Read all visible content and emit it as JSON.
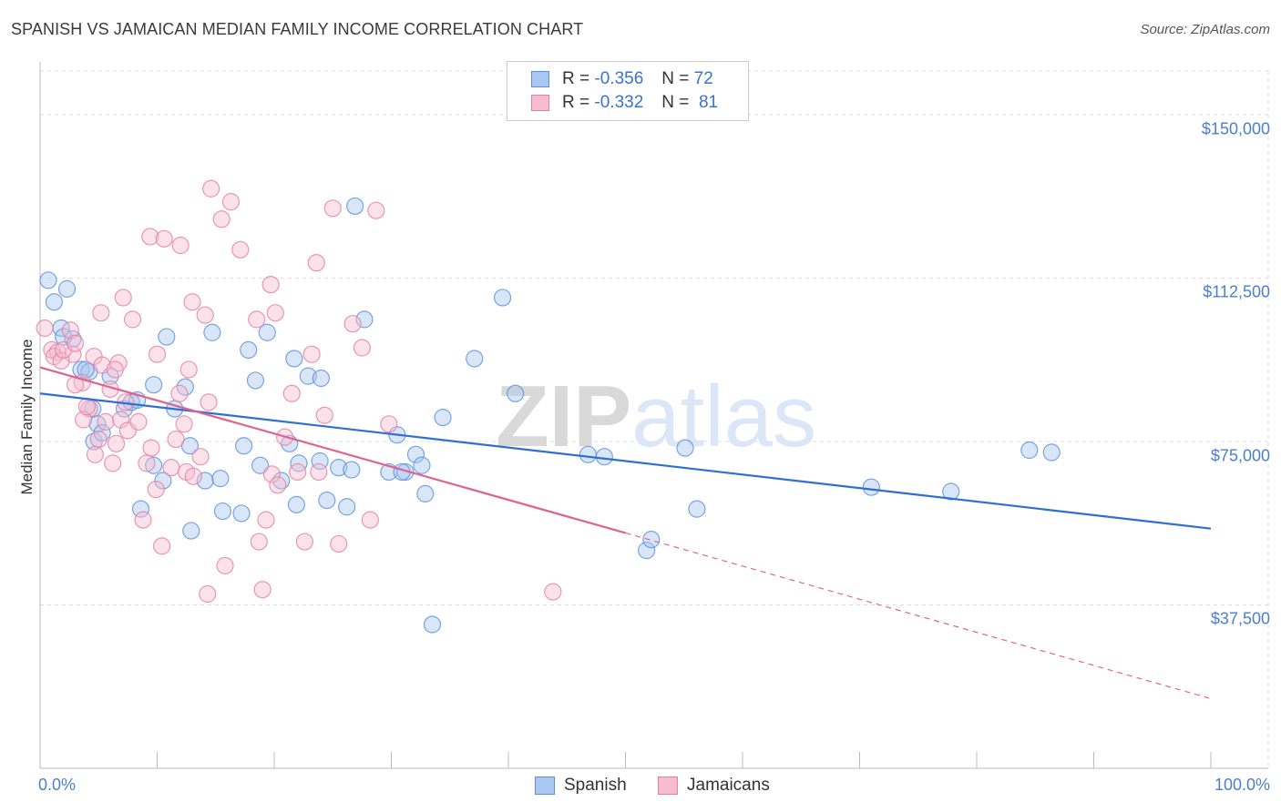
{
  "title": "SPANISH VS JAMAICAN MEDIAN FAMILY INCOME CORRELATION CHART",
  "source": "Source: ZipAtlas.com",
  "watermark": "ZIPatlas",
  "legend": {
    "rows": [
      {
        "r_label": "R =",
        "r_value": "-0.356",
        "n_label": "N =",
        "n_value": "72"
      },
      {
        "r_label": "R =",
        "r_value": "-0.332",
        "n_label": "N =",
        "n_value": "81"
      }
    ]
  },
  "bottom_legend": {
    "spanish": "Spanish",
    "jamaicans": "Jamaicans"
  },
  "colors": {
    "spanish_fill": "#a9c7f0",
    "spanish_stroke": "#5b8fdb",
    "spanish_line": "#2f6fd1",
    "jamaican_fill": "#f6bcd0",
    "jamaican_stroke": "#e47fa3",
    "jamaican_line": "#e0638f",
    "axis_text": "#4a7fd0",
    "grid": "#dddddd"
  },
  "chart_data": {
    "type": "scatter",
    "title": "SPANISH VS JAMAICAN MEDIAN FAMILY INCOME CORRELATION CHART",
    "xlabel": "",
    "ylabel": "Median Family Income",
    "xlim": [
      0,
      100
    ],
    "ylim": [
      0,
      160000
    ],
    "x_tick_labels": [
      "0.0%",
      "100.0%"
    ],
    "y_ticks": [
      37500,
      75000,
      112500,
      150000
    ],
    "y_tick_labels": [
      "$37,500",
      "$75,000",
      "$112,500",
      "$150,000"
    ],
    "grid": true,
    "series": [
      {
        "name": "Spanish",
        "r": -0.356,
        "n": 72,
        "trend": {
          "x": [
            0,
            100
          ],
          "y": [
            86000,
            55000
          ]
        },
        "points": [
          [
            0.7,
            112000
          ],
          [
            1.2,
            107000
          ],
          [
            2.3,
            110000
          ],
          [
            1.8,
            101000
          ],
          [
            2.8,
            98500
          ],
          [
            3.5,
            91500
          ],
          [
            4.2,
            91000
          ],
          [
            6.0,
            90000
          ],
          [
            4.5,
            82500
          ],
          [
            4.9,
            79000
          ],
          [
            4.6,
            75000
          ],
          [
            7.2,
            82500
          ],
          [
            7.8,
            84000
          ],
          [
            5.3,
            77000
          ],
          [
            9.7,
            88000
          ],
          [
            10.8,
            99000
          ],
          [
            12.4,
            87500
          ],
          [
            14.7,
            100000
          ],
          [
            17.8,
            96000
          ],
          [
            18.4,
            89000
          ],
          [
            19.4,
            100000
          ],
          [
            21.7,
            94000
          ],
          [
            22.9,
            90000
          ],
          [
            24.0,
            89500
          ],
          [
            26.9,
            129000
          ],
          [
            27.7,
            103000
          ],
          [
            37.1,
            94000
          ],
          [
            39.5,
            108000
          ],
          [
            40.6,
            86000
          ],
          [
            34.4,
            80500
          ],
          [
            30.5,
            76500
          ],
          [
            11.5,
            82500
          ],
          [
            12.8,
            74000
          ],
          [
            9.7,
            69500
          ],
          [
            10.5,
            66000
          ],
          [
            14.1,
            66000
          ],
          [
            15.4,
            66500
          ],
          [
            17.4,
            74000
          ],
          [
            18.8,
            69500
          ],
          [
            21.3,
            74500
          ],
          [
            20.6,
            66000
          ],
          [
            22.1,
            70000
          ],
          [
            23.9,
            70500
          ],
          [
            25.5,
            69000
          ],
          [
            26.6,
            68500
          ],
          [
            31.2,
            68000
          ],
          [
            29.8,
            68000
          ],
          [
            32.1,
            72000
          ],
          [
            32.6,
            69500
          ],
          [
            30.9,
            68000
          ],
          [
            24.5,
            61500
          ],
          [
            21.9,
            60500
          ],
          [
            26.2,
            60000
          ],
          [
            32.9,
            63000
          ],
          [
            8.6,
            59500
          ],
          [
            12.9,
            54500
          ],
          [
            15.6,
            59000
          ],
          [
            17.2,
            58500
          ],
          [
            46.8,
            72000
          ],
          [
            48.2,
            71500
          ],
          [
            55.1,
            73500
          ],
          [
            51.8,
            50000
          ],
          [
            52.2,
            52500
          ],
          [
            56.1,
            59500
          ],
          [
            33.5,
            33000
          ],
          [
            71.0,
            64500
          ],
          [
            77.8,
            63500
          ],
          [
            84.5,
            73000
          ],
          [
            86.4,
            72500
          ],
          [
            8.3,
            84500
          ],
          [
            3.9,
            91500
          ],
          [
            2.0,
            99000
          ]
        ]
      },
      {
        "name": "Jamaicans",
        "r": -0.332,
        "n": 81,
        "trend_solid": {
          "x": [
            0,
            50
          ],
          "y": [
            92000,
            54000
          ]
        },
        "trend_dashed": {
          "x": [
            50,
            100
          ],
          "y": [
            54000,
            16000
          ]
        },
        "points": [
          [
            0.4,
            101000
          ],
          [
            1.0,
            96000
          ],
          [
            1.5,
            95500
          ],
          [
            2.8,
            95000
          ],
          [
            1.2,
            94500
          ],
          [
            1.8,
            93500
          ],
          [
            4.6,
            94500
          ],
          [
            5.3,
            92500
          ],
          [
            6.7,
            93000
          ],
          [
            3.6,
            88500
          ],
          [
            3.0,
            88000
          ],
          [
            2.6,
            100500
          ],
          [
            2.0,
            96000
          ],
          [
            4.2,
            82500
          ],
          [
            3.7,
            80000
          ],
          [
            4.0,
            83000
          ],
          [
            5.6,
            79500
          ],
          [
            5.0,
            75500
          ],
          [
            4.7,
            72000
          ],
          [
            6.2,
            70000
          ],
          [
            6.9,
            80000
          ],
          [
            6.5,
            74500
          ],
          [
            7.5,
            77500
          ],
          [
            7.3,
            84000
          ],
          [
            8.4,
            79500
          ],
          [
            9.5,
            73500
          ],
          [
            9.1,
            70000
          ],
          [
            9.9,
            64000
          ],
          [
            8.8,
            57000
          ],
          [
            10.4,
            51000
          ],
          [
            11.2,
            69000
          ],
          [
            11.6,
            75500
          ],
          [
            11.9,
            86000
          ],
          [
            12.3,
            79000
          ],
          [
            12.5,
            68000
          ],
          [
            13.7,
            71500
          ],
          [
            14.4,
            84000
          ],
          [
            13.1,
            67000
          ],
          [
            10.0,
            95000
          ],
          [
            12.7,
            91500
          ],
          [
            6.0,
            87000
          ],
          [
            6.4,
            91500
          ],
          [
            7.9,
            103000
          ],
          [
            7.1,
            108000
          ],
          [
            5.2,
            104500
          ],
          [
            13.0,
            107000
          ],
          [
            14.1,
            104000
          ],
          [
            15.5,
            126000
          ],
          [
            17.1,
            119000
          ],
          [
            18.5,
            103000
          ],
          [
            19.7,
            111000
          ],
          [
            20.1,
            104500
          ],
          [
            23.2,
            95000
          ],
          [
            23.6,
            116000
          ],
          [
            26.7,
            102000
          ],
          [
            28.7,
            128000
          ],
          [
            25.0,
            128500
          ],
          [
            12.0,
            120000
          ],
          [
            9.4,
            122000
          ],
          [
            16.3,
            130000
          ],
          [
            14.6,
            133000
          ],
          [
            10.6,
            121500
          ],
          [
            19.3,
            57000
          ],
          [
            18.7,
            52000
          ],
          [
            22.6,
            52000
          ],
          [
            25.5,
            51500
          ],
          [
            28.2,
            57000
          ],
          [
            15.8,
            46500
          ],
          [
            14.3,
            40000
          ],
          [
            19.0,
            41000
          ],
          [
            43.8,
            40500
          ],
          [
            19.8,
            67500
          ],
          [
            22.0,
            68000
          ],
          [
            23.8,
            68000
          ],
          [
            20.3,
            65000
          ],
          [
            20.9,
            76000
          ],
          [
            21.5,
            86000
          ],
          [
            24.3,
            81000
          ],
          [
            27.5,
            96500
          ],
          [
            29.8,
            79000
          ],
          [
            3.0,
            97500
          ]
        ]
      }
    ]
  }
}
